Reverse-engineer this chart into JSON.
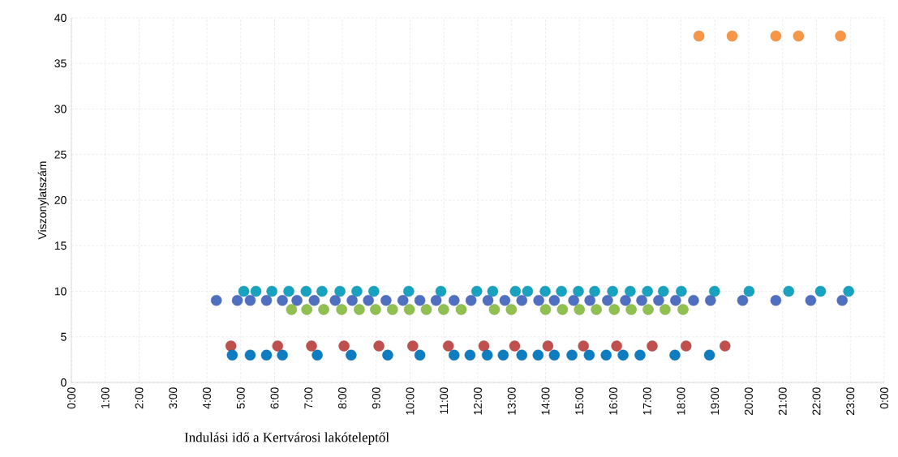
{
  "chart_data": {
    "type": "scatter",
    "xlabel": "Indulási idő a Kertvárosi lakóteleptől",
    "ylabel": "Viszonylatszám",
    "xlim": [
      0,
      24
    ],
    "ylim": [
      0,
      40
    ],
    "xticks": [
      {
        "value": 0,
        "label": "0:00"
      },
      {
        "value": 1,
        "label": "1:00"
      },
      {
        "value": 2,
        "label": "2:00"
      },
      {
        "value": 3,
        "label": "3:00"
      },
      {
        "value": 4,
        "label": "4:00"
      },
      {
        "value": 5,
        "label": "5:00"
      },
      {
        "value": 6,
        "label": "6:00"
      },
      {
        "value": 7,
        "label": "7:00"
      },
      {
        "value": 8,
        "label": "8:00"
      },
      {
        "value": 9,
        "label": "9:00"
      },
      {
        "value": 10,
        "label": "10:00"
      },
      {
        "value": 11,
        "label": "11:00"
      },
      {
        "value": 12,
        "label": "12:00"
      },
      {
        "value": 13,
        "label": "13:00"
      },
      {
        "value": 14,
        "label": "14:00"
      },
      {
        "value": 15,
        "label": "15:00"
      },
      {
        "value": 16,
        "label": "16:00"
      },
      {
        "value": 17,
        "label": "17:00"
      },
      {
        "value": 18,
        "label": "18:00"
      },
      {
        "value": 19,
        "label": "19:00"
      },
      {
        "value": 20,
        "label": "20:00"
      },
      {
        "value": 21,
        "label": "21:00"
      },
      {
        "value": 22,
        "label": "22:00"
      },
      {
        "value": 23,
        "label": "23:00"
      },
      {
        "value": 24,
        "label": "0:00"
      }
    ],
    "yticks": [
      0,
      5,
      10,
      15,
      20,
      25,
      30,
      35,
      40
    ],
    "grid": true,
    "marker": "circle",
    "series": [
      {
        "color": "#4f6fc0",
        "x": [
          4.28,
          4.9,
          5.28,
          5.76,
          6.23,
          6.66,
          7.17,
          7.79,
          8.29,
          8.77,
          9.29,
          9.79,
          10.29,
          10.77,
          11.3,
          11.8,
          12.3,
          12.8,
          13.3,
          13.8,
          14.26,
          14.83,
          15.31,
          15.83,
          16.36,
          16.84,
          17.34,
          17.84,
          18.37,
          18.87,
          19.82,
          20.8,
          21.83,
          22.76
        ],
        "values": [
          9,
          9,
          9,
          9,
          9,
          9,
          9,
          9,
          9,
          9,
          9,
          9,
          9,
          9,
          9,
          9,
          9,
          9,
          9,
          9,
          9,
          9,
          9,
          9,
          9,
          9,
          9,
          9,
          9,
          9,
          9,
          9,
          9,
          9
        ]
      },
      {
        "color": "#17a3c0",
        "x": [
          5.09,
          5.45,
          5.92,
          6.42,
          6.93,
          7.4,
          7.93,
          8.43,
          8.93,
          9.96,
          10.91,
          11.97,
          12.44,
          13.11,
          13.47,
          13.99,
          14.47,
          14.97,
          15.45,
          15.98,
          16.5,
          17.01,
          17.48,
          18.01,
          18.99,
          20.01,
          21.18,
          22.12,
          22.95
        ],
        "values": [
          10,
          10,
          10,
          10,
          10,
          10,
          10,
          10,
          10,
          10,
          10,
          10,
          10,
          10,
          10,
          10,
          10,
          10,
          10,
          10,
          10,
          10,
          10,
          10,
          10,
          10,
          10,
          10,
          10
        ]
      },
      {
        "color": "#8fc050",
        "x": [
          6.5,
          6.95,
          7.45,
          7.98,
          8.5,
          8.98,
          9.48,
          9.98,
          10.48,
          10.99,
          11.51,
          12.49,
          12.99,
          14.0,
          14.5,
          15.0,
          15.5,
          16.03,
          16.53,
          17.03,
          17.53,
          18.06
        ],
        "values": [
          8,
          8,
          8,
          8,
          8,
          8,
          8,
          8,
          8,
          8,
          8,
          8,
          8,
          8,
          8,
          8,
          8,
          8,
          8,
          8,
          8,
          8
        ]
      },
      {
        "color": "#c0504d",
        "x": [
          4.71,
          6.09,
          7.09,
          8.05,
          9.08,
          10.08,
          11.13,
          12.18,
          13.09,
          14.07,
          15.12,
          16.1,
          17.15,
          18.15,
          19.3
        ],
        "values": [
          4,
          4,
          4,
          4,
          4,
          4,
          4,
          4,
          4,
          4,
          4,
          4,
          4,
          4,
          4
        ]
      },
      {
        "color": "#0e7cc1",
        "x": [
          4.75,
          5.28,
          5.76,
          6.23,
          7.26,
          8.26,
          9.34,
          10.29,
          11.3,
          11.77,
          12.28,
          12.75,
          13.3,
          13.78,
          14.26,
          14.78,
          15.29,
          15.79,
          16.29,
          16.79,
          17.82,
          18.84
        ],
        "values": [
          3,
          3,
          3,
          3,
          3,
          3,
          3,
          3,
          3,
          3,
          3,
          3,
          3,
          3,
          3,
          3,
          3,
          3,
          3,
          3,
          3,
          3
        ]
      },
      {
        "color": "#f79646",
        "x": [
          18.53,
          19.51,
          20.8,
          21.47,
          22.71
        ],
        "values": [
          38,
          38,
          38,
          38,
          38
        ]
      }
    ]
  }
}
